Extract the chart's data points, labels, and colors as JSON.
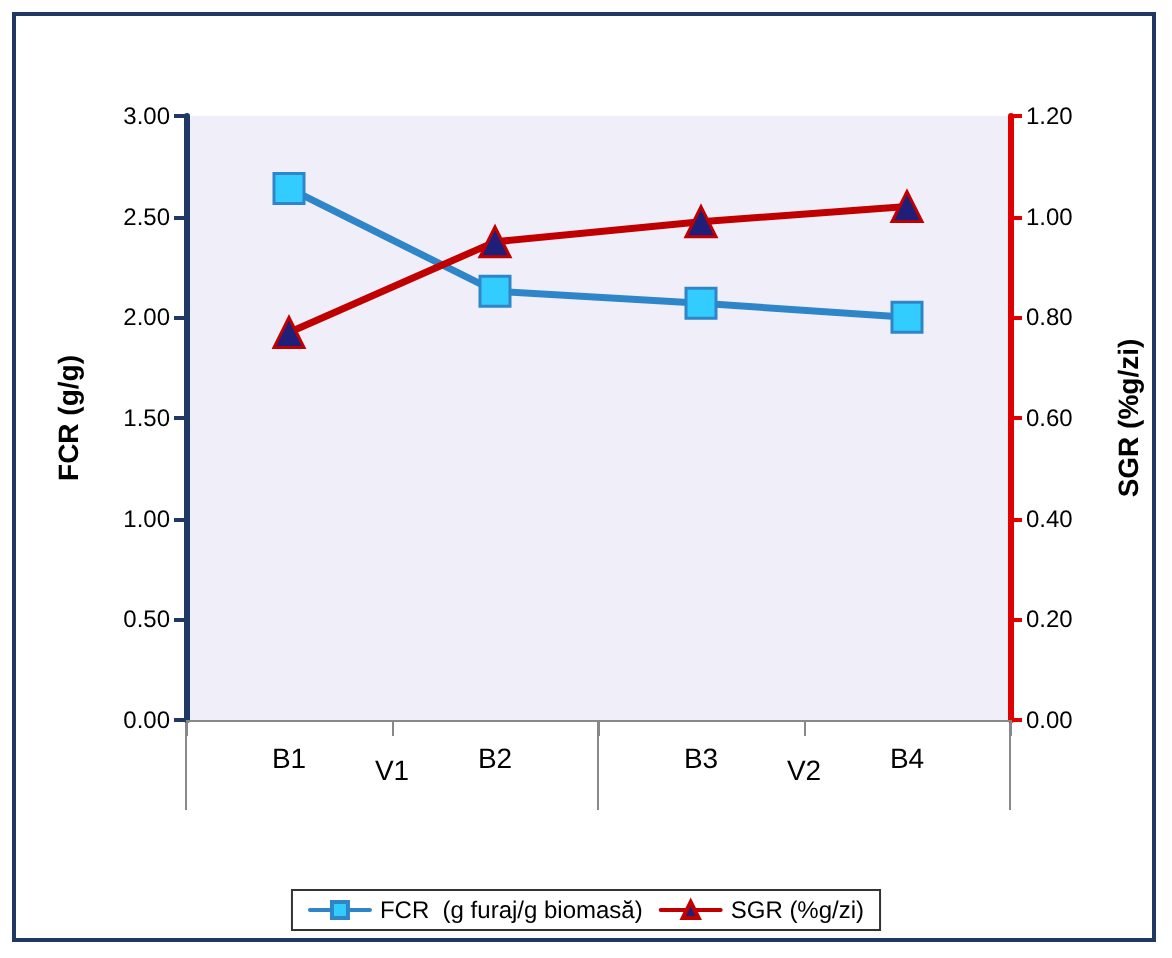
{
  "chart_data": {
    "type": "line",
    "ylabel": "FCR (g/g)",
    "y2label": "SGR (%g/zi)",
    "categories": [
      "B1",
      "B2",
      "B3",
      "B4"
    ],
    "series": [
      {
        "name": "FCR  (g furaj/g biomasă)",
        "color": "#2e86c8",
        "values": [
          2.64,
          2.13,
          2.07,
          2.0
        ],
        "marker": "square"
      },
      {
        "name": "SGR (%g/zi)",
        "color": "#c00000",
        "values": [
          0.77,
          0.95,
          0.99,
          1.02
        ],
        "marker": "triangle",
        "axis": "y2"
      }
    ],
    "ylim": [
      0,
      3
    ],
    "yticks": [
      {
        "value": 0,
        "label": "0.00"
      },
      {
        "value": 0.5,
        "label": "0.50"
      },
      {
        "value": 1,
        "label": "1.00"
      },
      {
        "value": 1.5,
        "label": "1.50"
      },
      {
        "value": 2,
        "label": "2.00"
      },
      {
        "value": 2.5,
        "label": "2.50"
      },
      {
        "value": 3,
        "label": "3.00"
      }
    ],
    "y2lim": [
      0,
      1.2
    ],
    "y2ticks": [
      {
        "value": 0,
        "label": "0.00"
      },
      {
        "value": 0.2,
        "label": "0.20"
      },
      {
        "value": 0.4,
        "label": "0.40"
      },
      {
        "value": 0.6,
        "label": "0.60"
      },
      {
        "value": 0.8,
        "label": "0.80"
      },
      {
        "value": 1,
        "label": "1.00"
      },
      {
        "value": 1.2,
        "label": "1.20"
      }
    ],
    "annotations": [
      "V1",
      "V2"
    ],
    "grid": false,
    "legend": "bottom",
    "line_style": "solid"
  }
}
